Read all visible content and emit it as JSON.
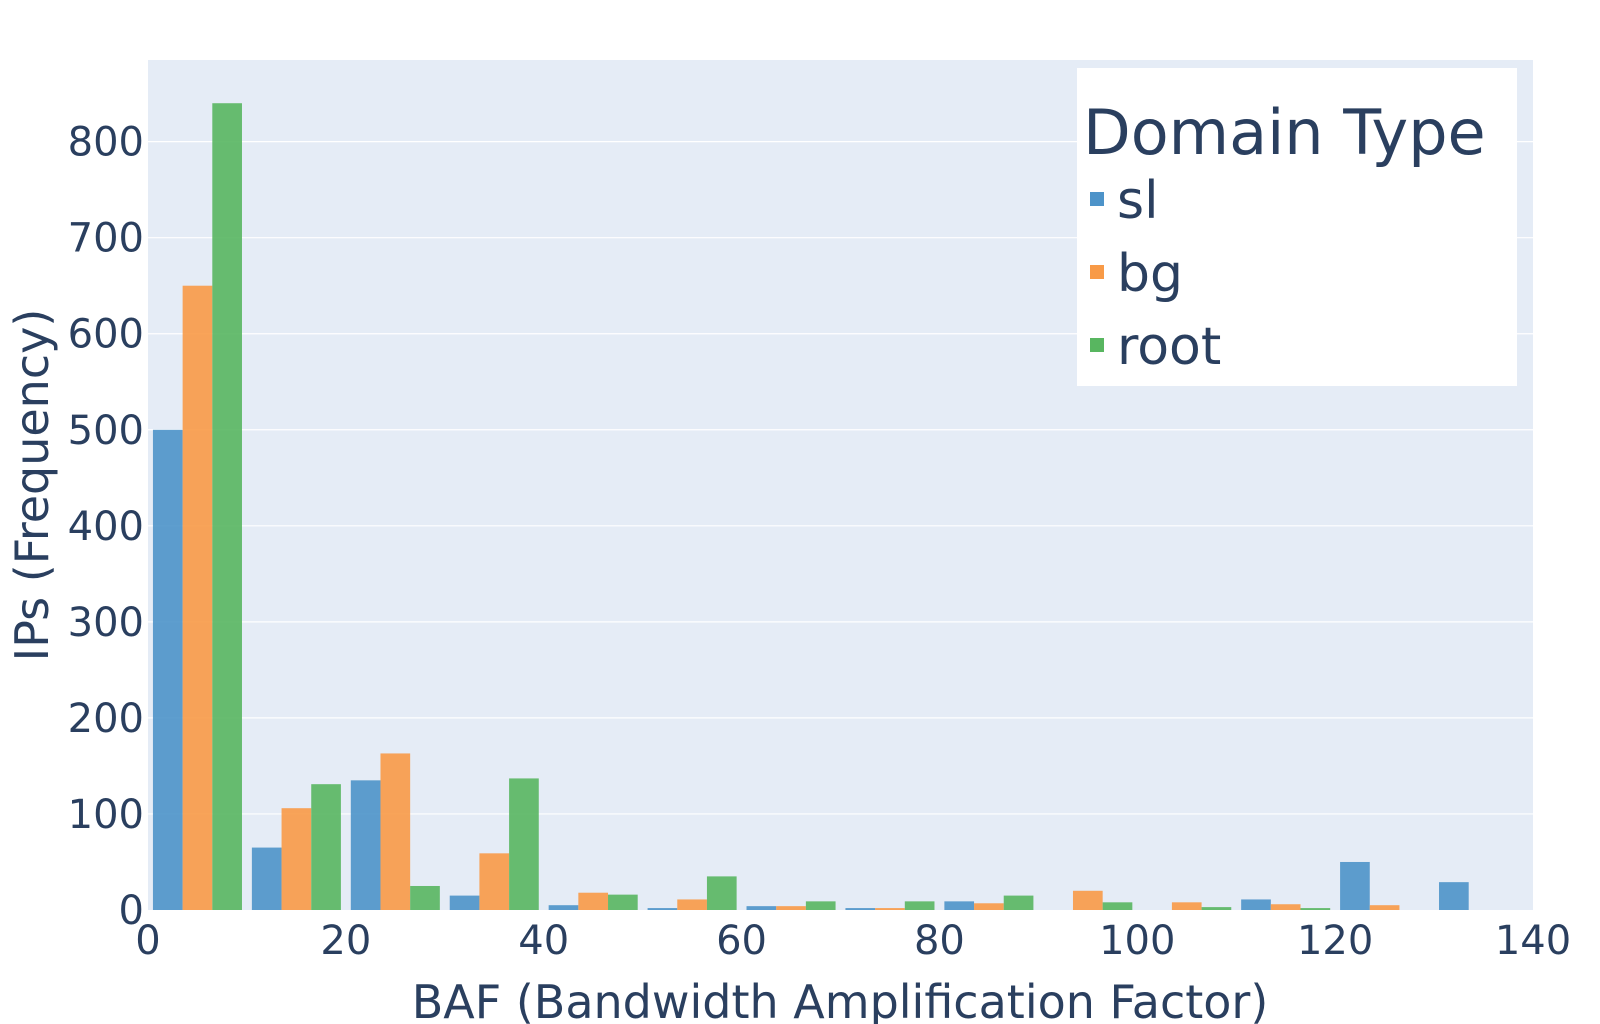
{
  "chart_data": {
    "type": "bar",
    "xlabel": "BAF (Bandwidth Amplification Factor)",
    "ylabel": "IPs (Frequency)",
    "xlim": [
      0,
      140
    ],
    "ylim": [
      0,
      885
    ],
    "xticks": [
      0,
      20,
      40,
      60,
      80,
      100,
      120,
      140
    ],
    "yticks": [
      0,
      100,
      200,
      300,
      400,
      500,
      600,
      700,
      800
    ],
    "bin_width": 10,
    "bins": [
      [
        0,
        10
      ],
      [
        10,
        20
      ],
      [
        20,
        30
      ],
      [
        30,
        40
      ],
      [
        40,
        50
      ],
      [
        50,
        60
      ],
      [
        60,
        70
      ],
      [
        70,
        80
      ],
      [
        80,
        90
      ],
      [
        90,
        100
      ],
      [
        100,
        110
      ],
      [
        110,
        120
      ],
      [
        120,
        130
      ],
      [
        130,
        140
      ]
    ],
    "grid": true,
    "plot_background": "#e5ecf6",
    "legend": {
      "title": "Domain Type",
      "placement": "top-right"
    },
    "series": [
      {
        "name": "sl",
        "color": "#4d93c9",
        "values": [
          500,
          65,
          135,
          15,
          5,
          2,
          4,
          2,
          9,
          0,
          0,
          11,
          50,
          29
        ]
      },
      {
        "name": "bg",
        "color": "#f89a47",
        "values": [
          650,
          106,
          163,
          59,
          18,
          11,
          4,
          2,
          7,
          20,
          8,
          6,
          5,
          0
        ]
      },
      {
        "name": "root",
        "color": "#58b660",
        "values": [
          840,
          131,
          25,
          137,
          16,
          35,
          9,
          9,
          15,
          8,
          3,
          2,
          0,
          0
        ]
      }
    ]
  }
}
